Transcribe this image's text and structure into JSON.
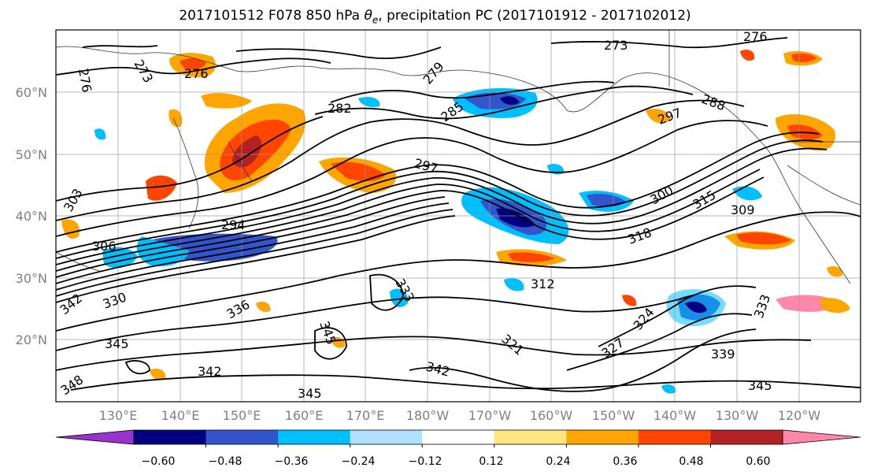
{
  "title": {
    "prefix": "2017101512 F078 850 hPa ",
    "theta": "θ",
    "theta_sub": "e",
    "suffix": ", precipitation PC (2017101912 - 2017102012)"
  },
  "lat_labels": [
    "60°N",
    "50°N",
    "40°N",
    "30°N",
    "20°N"
  ],
  "lon_labels": [
    "130°E",
    "140°E",
    "150°E",
    "160°E",
    "170°E",
    "180°W",
    "170°W",
    "160°W",
    "150°W",
    "140°W",
    "130°W",
    "120°W"
  ],
  "colorbar": {
    "colors": [
      "#9933cc",
      "#000080",
      "#3355cc",
      "#00bfff",
      "#b0e2ff",
      "#ffffff",
      "#ffe680",
      "#ffa500",
      "#ff4500",
      "#b22222",
      "#ff88aa"
    ],
    "tick_labels": [
      "−0.60",
      "−0.48",
      "−0.36",
      "−0.24",
      "−0.12",
      "0.12",
      "0.24",
      "0.36",
      "0.48",
      "0.60"
    ]
  },
  "contour_labels": [
    {
      "text": "273"
    },
    {
      "text": "276"
    },
    {
      "text": "273"
    },
    {
      "text": "276"
    },
    {
      "text": "276"
    },
    {
      "text": "279"
    },
    {
      "text": "282"
    },
    {
      "text": "285"
    },
    {
      "text": "288"
    },
    {
      "text": "297"
    },
    {
      "text": "297"
    },
    {
      "text": "294"
    },
    {
      "text": "303"
    },
    {
      "text": "306"
    },
    {
      "text": "300"
    },
    {
      "text": "315"
    },
    {
      "text": "309"
    },
    {
      "text": "318"
    },
    {
      "text": "312"
    },
    {
      "text": "330"
    },
    {
      "text": "342"
    },
    {
      "text": "345"
    },
    {
      "text": "345"
    },
    {
      "text": "342"
    },
    {
      "text": "348"
    },
    {
      "text": "333"
    },
    {
      "text": "342"
    },
    {
      "text": "339"
    },
    {
      "text": "345"
    },
    {
      "text": "333"
    },
    {
      "text": "324"
    },
    {
      "text": "321"
    },
    {
      "text": "336"
    },
    {
      "text": "345"
    },
    {
      "text": "327"
    }
  ]
}
